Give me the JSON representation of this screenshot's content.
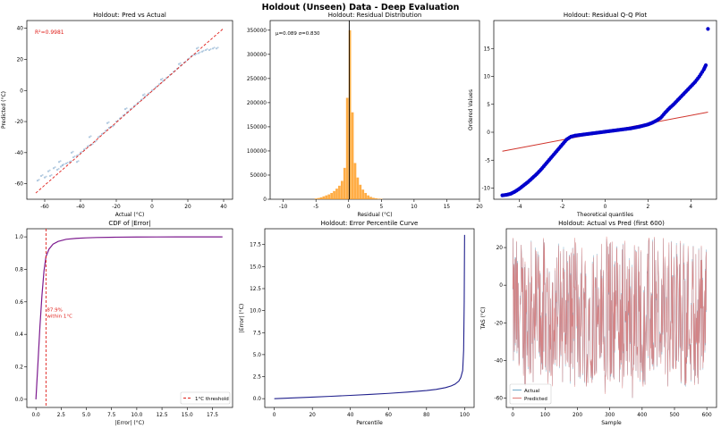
{
  "figure_title": "Holdout (Unseen) Data - Deep Evaluation",
  "colors": {
    "scatter": "#7aa3c9",
    "diag": "#e0201b",
    "hist": "#ff9f26",
    "qq_points": "#0000cc",
    "qq_line": "#d0342c",
    "cdf": "#7d1b8f",
    "threshold": "#e0201b",
    "pct_curve": "#1f1f8c",
    "actual": "#6fa8c8",
    "predicted": "#e07a78"
  },
  "chart_data": [
    {
      "id": "pva",
      "type": "scatter",
      "title": "Holdout: Pred vs Actual",
      "xlabel": "Actual (°C)",
      "ylabel": "Predicted (°C)",
      "xlim": [
        -70,
        45
      ],
      "ylim": [
        -70,
        45
      ],
      "xticks": [
        -60,
        -40,
        -20,
        0,
        20,
        40
      ],
      "yticks": [
        -60,
        -40,
        -20,
        0,
        20,
        40
      ],
      "annotation": "R²=0.9981",
      "reference_line": {
        "from": [
          -65,
          -66
        ],
        "to": [
          40,
          40
        ]
      },
      "points": [
        [
          -64,
          -58
        ],
        [
          -62,
          -55
        ],
        [
          -60,
          -56
        ],
        [
          -58,
          -52
        ],
        [
          -57,
          -55
        ],
        [
          -55,
          -50
        ],
        [
          -53,
          -51
        ],
        [
          -51,
          -49
        ],
        [
          -50,
          -48
        ],
        [
          -48,
          -47
        ],
        [
          -46,
          -46
        ],
        [
          -44,
          -43
        ],
        [
          -42,
          -42
        ],
        [
          -40,
          -40
        ],
        [
          -38,
          -38
        ],
        [
          -36,
          -36
        ],
        [
          -34,
          -35
        ],
        [
          -32,
          -33
        ],
        [
          -30,
          -30
        ],
        [
          -28,
          -28
        ],
        [
          -26,
          -26
        ],
        [
          -24,
          -24
        ],
        [
          -22,
          -23
        ],
        [
          -20,
          -20
        ],
        [
          -18,
          -18
        ],
        [
          -16,
          -16
        ],
        [
          -14,
          -14
        ],
        [
          -12,
          -12
        ],
        [
          -10,
          -10
        ],
        [
          -8,
          -8
        ],
        [
          -6,
          -6
        ],
        [
          -4,
          -4
        ],
        [
          -2,
          -2
        ],
        [
          0,
          0
        ],
        [
          2,
          2
        ],
        [
          4,
          4
        ],
        [
          6,
          6
        ],
        [
          8,
          8
        ],
        [
          10,
          10
        ],
        [
          12,
          12
        ],
        [
          14,
          14
        ],
        [
          16,
          16
        ],
        [
          18,
          18
        ],
        [
          20,
          20
        ],
        [
          22,
          22
        ],
        [
          24,
          23
        ],
        [
          26,
          24
        ],
        [
          28,
          25
        ],
        [
          30,
          26
        ],
        [
          32,
          26
        ],
        [
          34,
          27
        ],
        [
          36,
          27
        ],
        [
          -45,
          -40
        ],
        [
          -35,
          -30
        ],
        [
          -25,
          -21
        ],
        [
          -15,
          -12
        ],
        [
          -5,
          -3
        ],
        [
          5,
          7
        ],
        [
          15,
          17
        ],
        [
          25,
          27
        ],
        [
          -52,
          -46
        ],
        [
          -42,
          -46
        ]
      ]
    },
    {
      "id": "resid",
      "type": "bar",
      "title": "Holdout: Residual Distribution",
      "xlabel": "Residual (°C)",
      "ylabel": "",
      "xlim": [
        -12,
        20
      ],
      "ylim": [
        0,
        370000
      ],
      "xticks": [
        -10,
        -5,
        0,
        5,
        10,
        15,
        20
      ],
      "yticks": [
        0,
        50000,
        100000,
        150000,
        200000,
        250000,
        300000,
        350000
      ],
      "annotation": "μ=0.089  σ=0.830",
      "mean_line": 0.089,
      "bin_width": 0.4,
      "bins": [
        [
          -5.2,
          1500
        ],
        [
          -4.8,
          2500
        ],
        [
          -4.4,
          4000
        ],
        [
          -4.0,
          6000
        ],
        [
          -3.6,
          8000
        ],
        [
          -3.2,
          10000
        ],
        [
          -2.8,
          13000
        ],
        [
          -2.4,
          17000
        ],
        [
          -2.0,
          22000
        ],
        [
          -1.6,
          28000
        ],
        [
          -1.2,
          38000
        ],
        [
          -0.8,
          65000
        ],
        [
          -0.4,
          210000
        ],
        [
          0.0,
          350000
        ],
        [
          0.4,
          180000
        ],
        [
          0.8,
          75000
        ],
        [
          1.2,
          45000
        ],
        [
          1.6,
          30000
        ],
        [
          2.0,
          20000
        ],
        [
          2.4,
          13000
        ],
        [
          2.8,
          8000
        ],
        [
          3.2,
          5000
        ],
        [
          3.6,
          3000
        ],
        [
          4.0,
          2000
        ],
        [
          4.4,
          1200
        ],
        [
          4.8,
          800
        ]
      ]
    },
    {
      "id": "qq",
      "type": "scatter",
      "title": "Holdout: Residual Q-Q Plot",
      "xlabel": "Theoretical quantiles",
      "ylabel": "Ordered Values",
      "xlim": [
        -5.2,
        5.2
      ],
      "ylim": [
        -12,
        20
      ],
      "xticks": [
        -4,
        -2,
        0,
        2,
        4
      ],
      "yticks": [
        -10,
        -5,
        0,
        5,
        10,
        15
      ],
      "fit_line": {
        "from": [
          -4.8,
          -3.4
        ],
        "to": [
          4.8,
          3.6
        ]
      },
      "outlier": [
        4.8,
        18.5
      ],
      "points": [
        [
          -4.8,
          -11.3
        ],
        [
          -4.6,
          -11.2
        ],
        [
          -4.4,
          -11.0
        ],
        [
          -4.2,
          -10.6
        ],
        [
          -4.0,
          -10.1
        ],
        [
          -3.8,
          -9.5
        ],
        [
          -3.6,
          -8.9
        ],
        [
          -3.4,
          -8.2
        ],
        [
          -3.2,
          -7.5
        ],
        [
          -3.0,
          -6.7
        ],
        [
          -2.8,
          -5.8
        ],
        [
          -2.6,
          -4.9
        ],
        [
          -2.4,
          -4.0
        ],
        [
          -2.2,
          -3.1
        ],
        [
          -2.0,
          -2.2
        ],
        [
          -1.8,
          -1.3
        ],
        [
          -1.6,
          -0.8
        ],
        [
          -1.4,
          -0.6
        ],
        [
          -1.2,
          -0.5
        ],
        [
          -1.0,
          -0.4
        ],
        [
          -0.8,
          -0.3
        ],
        [
          -0.6,
          -0.2
        ],
        [
          -0.4,
          -0.1
        ],
        [
          -0.2,
          0.0
        ],
        [
          0.0,
          0.1
        ],
        [
          0.2,
          0.2
        ],
        [
          0.4,
          0.3
        ],
        [
          0.6,
          0.4
        ],
        [
          0.8,
          0.5
        ],
        [
          1.0,
          0.6
        ],
        [
          1.2,
          0.7
        ],
        [
          1.4,
          0.85
        ],
        [
          1.6,
          1.0
        ],
        [
          1.8,
          1.2
        ],
        [
          2.0,
          1.4
        ],
        [
          2.2,
          1.7
        ],
        [
          2.4,
          2.1
        ],
        [
          2.6,
          2.6
        ],
        [
          2.8,
          3.5
        ],
        [
          3.0,
          4.3
        ],
        [
          3.2,
          5.0
        ],
        [
          3.4,
          5.8
        ],
        [
          3.6,
          6.6
        ],
        [
          3.8,
          7.4
        ],
        [
          4.0,
          8.2
        ],
        [
          4.2,
          9.0
        ],
        [
          4.4,
          10.0
        ],
        [
          4.6,
          11.2
        ],
        [
          4.7,
          12.0
        ]
      ]
    },
    {
      "id": "cdf",
      "type": "line",
      "title": "CDF of |Error|",
      "xlabel": "|Error| (°C)",
      "ylabel": "",
      "xlim": [
        -0.9,
        19.5
      ],
      "ylim": [
        -0.05,
        1.05
      ],
      "xticks": [
        0.0,
        2.5,
        5.0,
        7.5,
        10.0,
        12.5,
        15.0,
        17.5
      ],
      "xticklabels": [
        "0.0",
        "2.5",
        "5.0",
        "7.5",
        "10.0",
        "12.5",
        "15.0",
        "17.5"
      ],
      "yticks": [
        0.0,
        0.2,
        0.4,
        0.6,
        0.8,
        1.0
      ],
      "yticklabels": [
        "0.0",
        "0.2",
        "0.4",
        "0.6",
        "0.8",
        "1.0"
      ],
      "threshold_x": 1,
      "annotation_lines": [
        "87.9%",
        "within 1°C"
      ],
      "legend_label": "1°C threshold",
      "x": [
        0,
        0.2,
        0.4,
        0.6,
        0.8,
        1.0,
        1.3,
        1.7,
        2.2,
        3,
        4,
        5,
        6,
        8,
        10,
        12,
        14,
        16,
        18.5
      ],
      "y": [
        0,
        0.22,
        0.45,
        0.64,
        0.79,
        0.879,
        0.925,
        0.955,
        0.972,
        0.985,
        0.991,
        0.994,
        0.996,
        0.998,
        0.999,
        0.9995,
        0.9998,
        0.9999,
        1.0
      ]
    },
    {
      "id": "pct",
      "type": "line",
      "title": "Holdout: Error Percentile Curve",
      "xlabel": "Percentile",
      "ylabel": "|Error| (°C)",
      "xlim": [
        -5,
        105
      ],
      "ylim": [
        -1,
        19.3
      ],
      "xticks": [
        0,
        20,
        40,
        60,
        80,
        100
      ],
      "yticks": [
        0.0,
        2.5,
        5.0,
        7.5,
        10.0,
        12.5,
        15.0,
        17.5
      ],
      "yticklabels": [
        "0.0",
        "2.5",
        "5.0",
        "7.5",
        "10.0",
        "12.5",
        "15.0",
        "17.5"
      ],
      "x": [
        0,
        10,
        20,
        30,
        40,
        50,
        60,
        70,
        80,
        85,
        90,
        93,
        95,
        97,
        98,
        99,
        99.5,
        99.8,
        100
      ],
      "y": [
        0.0,
        0.08,
        0.17,
        0.27,
        0.37,
        0.48,
        0.6,
        0.74,
        0.92,
        1.05,
        1.25,
        1.45,
        1.65,
        2.0,
        2.4,
        3.2,
        5.5,
        11,
        18.6
      ]
    },
    {
      "id": "avp",
      "type": "line",
      "title": "Holdout: Actual vs Pred (first 600)",
      "xlabel": "Sample",
      "ylabel": "TAS (°C)",
      "xlim": [
        -20,
        630
      ],
      "ylim": [
        -65,
        30
      ],
      "xticks": [
        0,
        100,
        200,
        300,
        400,
        500,
        600
      ],
      "yticks": [
        -60,
        -40,
        -20,
        0,
        20
      ],
      "legend": [
        "Actual",
        "Predicted"
      ],
      "n_samples": 600,
      "value_range": [
        -62,
        27
      ]
    }
  ]
}
